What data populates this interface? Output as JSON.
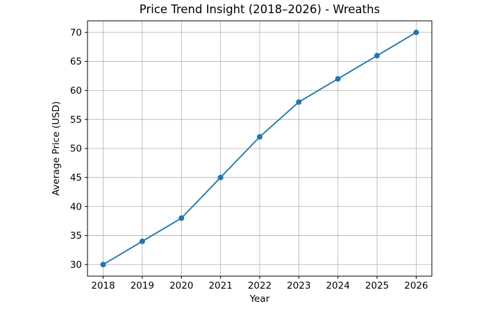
{
  "chart_data": {
    "type": "line",
    "title": "Price Trend Insight (2018–2026) - Wreaths",
    "xlabel": "Year",
    "ylabel": "Average Price (USD)",
    "x": [
      2018,
      2019,
      2020,
      2021,
      2022,
      2023,
      2024,
      2025,
      2026
    ],
    "series": [
      {
        "name": "Average Price",
        "values": [
          30,
          34,
          38,
          45,
          52,
          58,
          62,
          66,
          70
        ]
      }
    ],
    "xticks": [
      2018,
      2019,
      2020,
      2021,
      2022,
      2023,
      2024,
      2025,
      2026
    ],
    "yticks": [
      30,
      35,
      40,
      45,
      50,
      55,
      60,
      65,
      70
    ],
    "xlim": [
      2017.6,
      2026.4
    ],
    "ylim": [
      28,
      72
    ],
    "grid": true,
    "legend_position": "none",
    "marker": "o",
    "colors": {
      "line": "#1f77b4",
      "marker": "#1f77b4",
      "grid": "#b0b0b0",
      "axes": "#000000",
      "background": "#ffffff"
    }
  }
}
